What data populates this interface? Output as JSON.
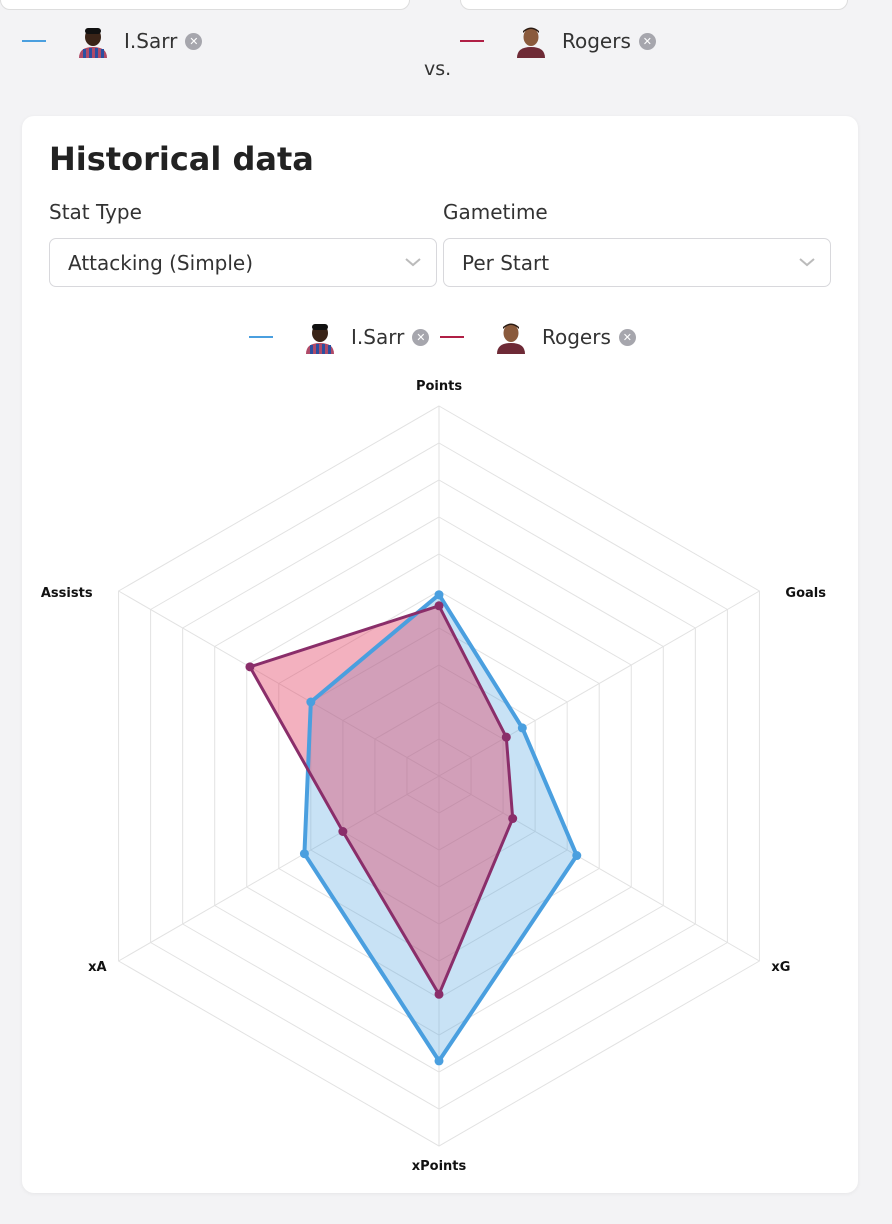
{
  "header": {
    "vs_label": "vs.",
    "player_left": {
      "name": "I.Sarr",
      "color": "#4a9fdf"
    },
    "player_right": {
      "name": "Rogers",
      "color": "#b01f45"
    }
  },
  "card": {
    "title": "Historical data",
    "stat_type": {
      "label": "Stat Type",
      "value": "Attacking (Simple)"
    },
    "gametime": {
      "label": "Gametime",
      "value": "Per Start"
    }
  },
  "legend": [
    {
      "name": "I.Sarr",
      "color": "#4a9fdf",
      "remove_icon": "close-icon"
    },
    {
      "name": "Rogers",
      "color": "#b01f45",
      "remove_icon": "close-icon"
    }
  ],
  "chart_data": {
    "type": "radar",
    "axes": [
      "Points",
      "Goals",
      "xG",
      "xPoints",
      "xA",
      "Assists"
    ],
    "range": [
      0,
      1
    ],
    "grid_levels": 10,
    "grid": true,
    "legend_position": "top",
    "series": [
      {
        "name": "I.Sarr",
        "color": "#4a9fdf",
        "values": [
          0.49,
          0.26,
          0.43,
          0.77,
          0.42,
          0.4
        ]
      },
      {
        "name": "Rogers",
        "color": "#b01f45",
        "values": [
          0.46,
          0.21,
          0.23,
          0.59,
          0.3,
          0.59
        ]
      }
    ]
  }
}
